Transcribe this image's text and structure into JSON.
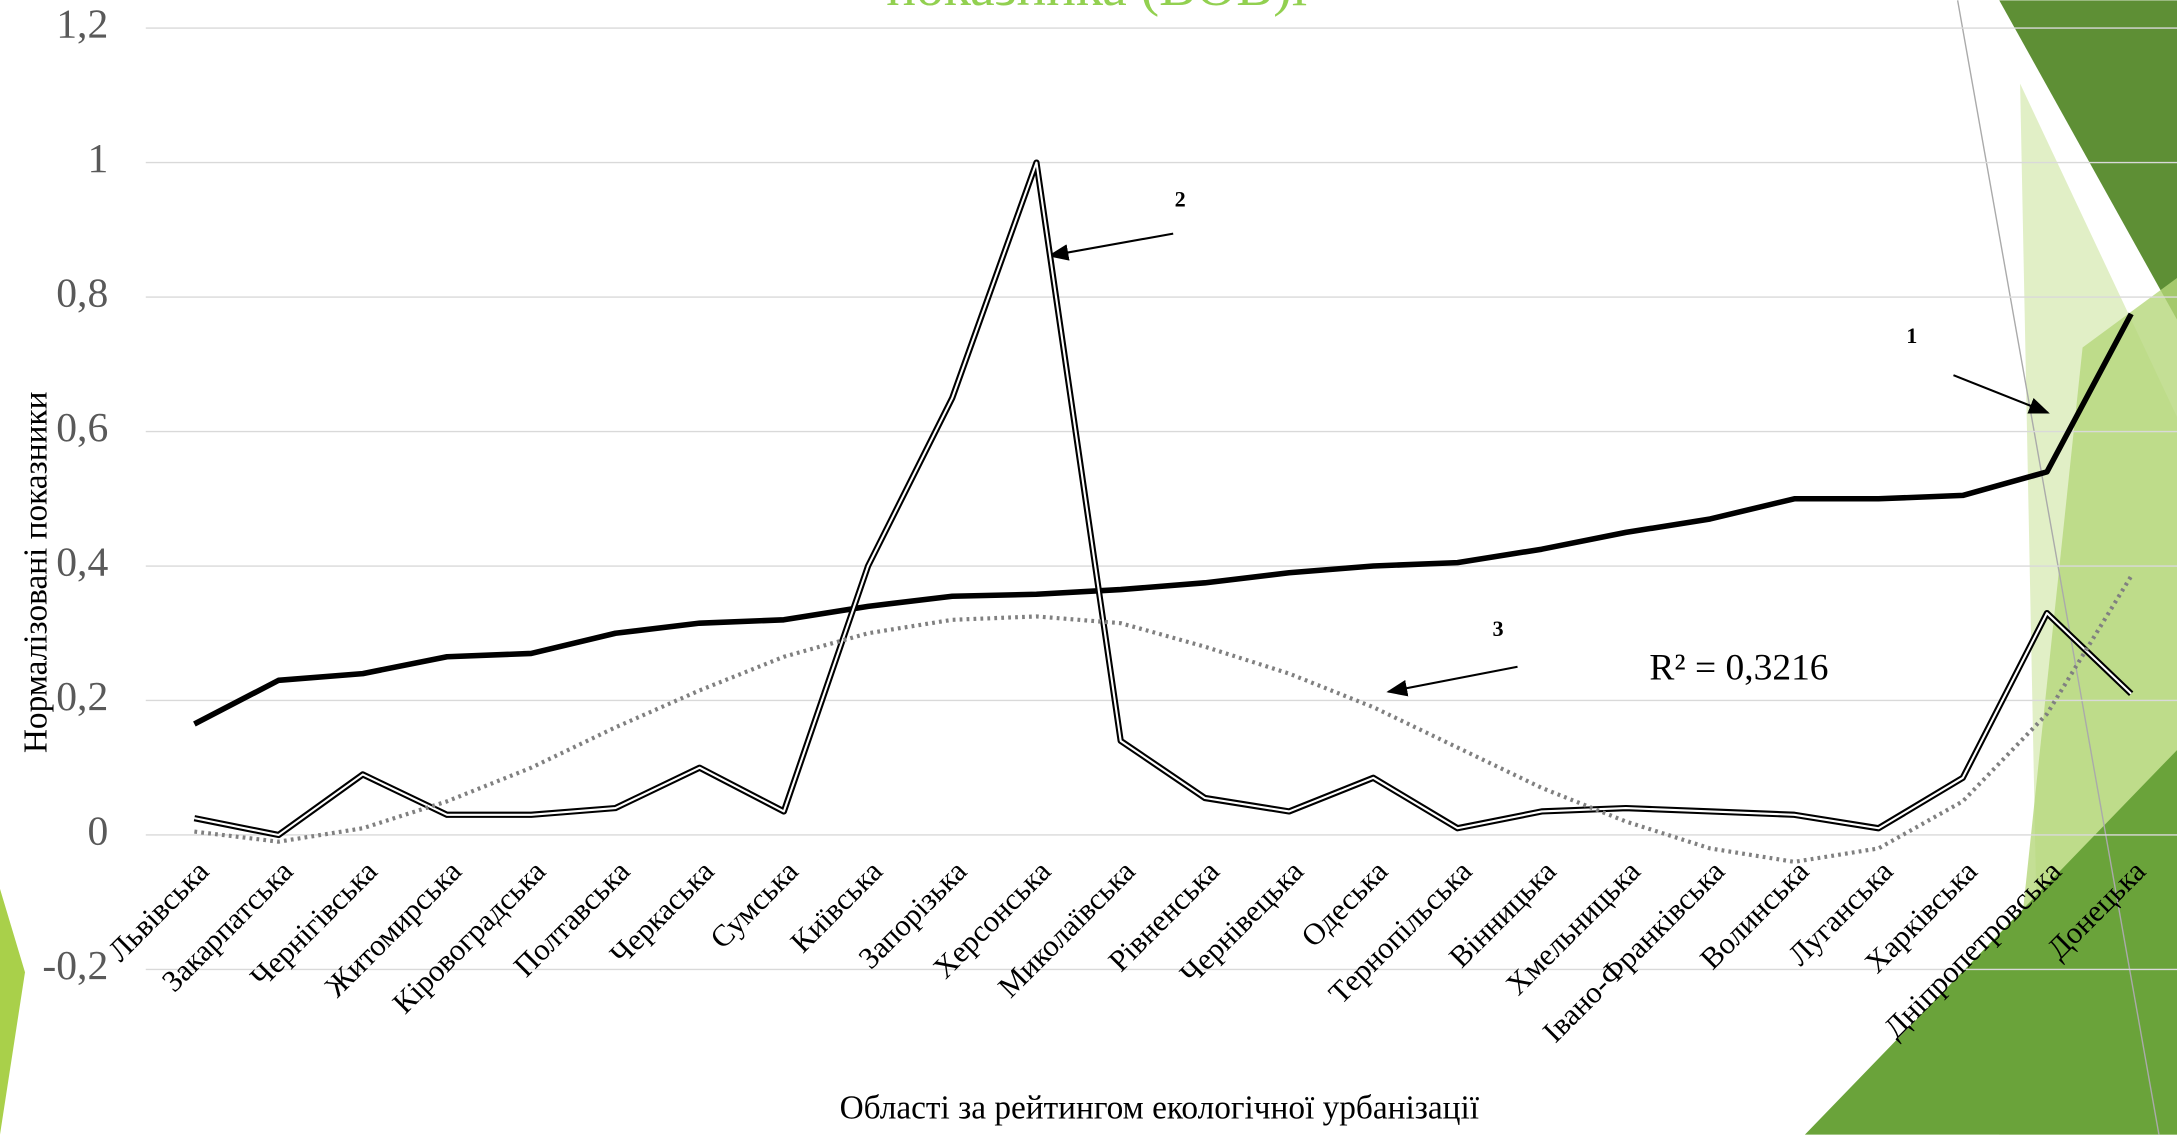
{
  "chart_data": {
    "type": "line",
    "title": "показника (ВОВ)i",
    "y_label": "Нормалізовані показники",
    "x_label": "Області за рейтингом екологічної урбанізації",
    "annotations": [
      "1",
      "2",
      "3",
      "R² = 0,3216"
    ],
    "categories": [
      "Львівська",
      "Закарпатська",
      "Чернігівська",
      "Житомирська",
      "Кіровоградська",
      "Полтавська",
      "Черкаська",
      "Сумська",
      "Київська",
      "Запорізька",
      "Херсонська",
      "Миколаївська",
      "Рівненська",
      "Чернівецька",
      "Одеська",
      "Тернопільська",
      "Вінницька",
      "Хмельницька",
      "Івано-Франківська",
      "Волинська",
      "Луганська",
      "Харківська",
      "Дніпропетровська",
      "Донецька"
    ],
    "series": [
      {
        "color": "#000000",
        "style": "solid",
        "values": [
          0.165,
          0.23,
          0.24,
          0.265,
          0.27,
          0.3,
          0.315,
          0.32,
          0.34,
          0.355,
          0.358,
          0.365,
          0.375,
          0.39,
          0.4,
          0.405,
          0.425,
          0.45,
          0.47,
          0.5,
          0.5,
          0.505,
          0.54,
          0.775
        ]
      },
      {
        "color": "#000000",
        "style": "double",
        "values": [
          0.025,
          0.0,
          0.09,
          0.03,
          0.03,
          0.04,
          0.1,
          0.035,
          0.4,
          0.65,
          1.0,
          0.14,
          0.055,
          0.035,
          0.085,
          0.01,
          0.035,
          0.04,
          0.035,
          0.03,
          0.01,
          0.085,
          0.33,
          0.21
        ]
      },
      {
        "color": "#808080",
        "style": "dotted",
        "values": [
          0.005,
          -0.01,
          0.01,
          0.05,
          0.1,
          0.16,
          0.215,
          0.265,
          0.3,
          0.32,
          0.325,
          0.315,
          0.28,
          0.24,
          0.19,
          0.13,
          0.07,
          0.02,
          -0.02,
          -0.04,
          -0.02,
          0.05,
          0.18,
          0.385
        ]
      }
    ],
    "ylim": [
      -0.2,
      1.2
    ],
    "yticks": [
      {
        "value": -0.2,
        "label": "-0,2"
      },
      0,
      {
        "value": 0.2,
        "label": "0,2"
      },
      {
        "value": 0.4,
        "label": "0,4"
      },
      {
        "value": 0.6,
        "label": "0,6"
      },
      {
        "value": 0.8,
        "label": "0,8"
      },
      1,
      {
        "value": 1.2,
        "label": "1,2"
      }
    ],
    "grid": true
  }
}
